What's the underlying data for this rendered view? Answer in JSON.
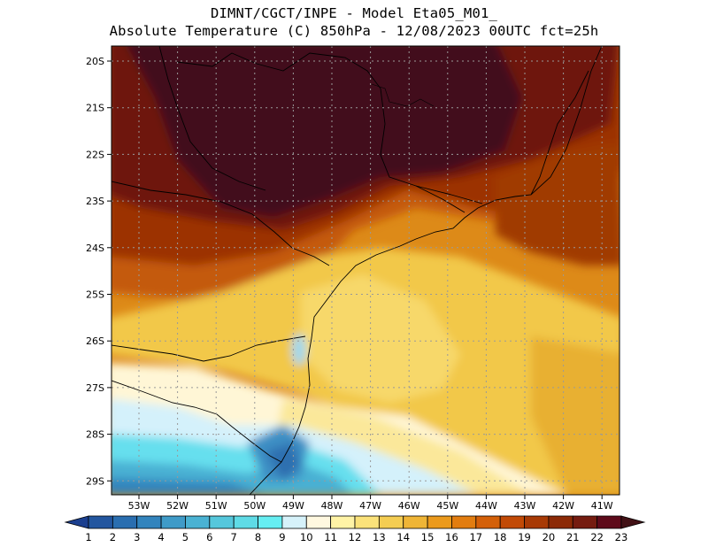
{
  "header": {
    "line1": "DIMNT/CGCT/INPE -  Model Eta05_M01_",
    "line2": "Absolute Temperature (C) 850hPa -  12/08/2023 00UTC fct=25h"
  },
  "map": {
    "variable": "Absolute Temperature",
    "units": "C",
    "level": "850hPa",
    "lat_labels": [
      "20S",
      "21S",
      "22S",
      "23S",
      "24S",
      "25S",
      "26S",
      "27S",
      "28S",
      "29S"
    ],
    "lon_labels": [
      "53W",
      "52W",
      "51W",
      "50W",
      "49W",
      "48W",
      "47W",
      "46W",
      "45W",
      "44W",
      "43W",
      "42W",
      "41W"
    ]
  },
  "colorbar": {
    "labels": [
      "1",
      "2",
      "3",
      "4",
      "5",
      "6",
      "7",
      "8",
      "9",
      "10",
      "11",
      "12",
      "13",
      "14",
      "15",
      "16",
      "17",
      "18",
      "19",
      "20",
      "21",
      "22",
      "23"
    ],
    "colors": [
      "#1b3f8f",
      "#23569f",
      "#2a6eb0",
      "#3384bd",
      "#3f9bc8",
      "#4ab2d3",
      "#55c7dc",
      "#5fdbe6",
      "#66eef2",
      "#d6f2fa",
      "#fff8e0",
      "#fff3a6",
      "#fbe27a",
      "#f4cd52",
      "#efb536",
      "#eb9a1c",
      "#e27d10",
      "#d46008",
      "#c24a06",
      "#a83a05",
      "#8c2a06",
      "#751c10",
      "#5e0a1a",
      "#421116"
    ]
  }
}
